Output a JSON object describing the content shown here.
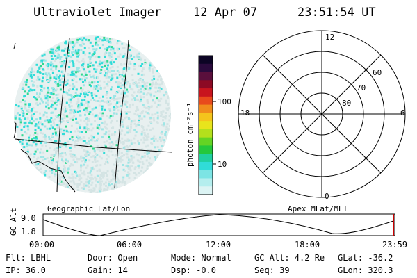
{
  "header": {
    "instrument": "Ultraviolet Imager",
    "date": "12 Apr 07",
    "time": "23:51:54 UT"
  },
  "image_panel": {
    "caption": "Geographic Lat/Lon"
  },
  "colorbar": {
    "unit_label": "photon cm⁻²s⁻¹",
    "scale": "log",
    "ticks": [
      "100",
      "10"
    ],
    "colors": [
      "#0c0424",
      "#2a0a3c",
      "#5a0f3c",
      "#8c0a24",
      "#c8141e",
      "#e84a1c",
      "#f08c1c",
      "#f4c41c",
      "#e8e41c",
      "#b4e01c",
      "#64d424",
      "#24c83c",
      "#20d0a0",
      "#30dcd8",
      "#7ce4e4",
      "#b4eeee",
      "#dcf4f4"
    ]
  },
  "polar_plot": {
    "caption": "Apex MLat/MLT",
    "mlt_labels": [
      "12",
      "18",
      "6",
      "0"
    ],
    "mlat_labels": [
      "60",
      "70",
      "80"
    ]
  },
  "altitude_strip": {
    "axis_label": "GC Alt",
    "y_ticks": [
      "9.0",
      "1.8"
    ],
    "x_ticks": [
      "00:00",
      "06:00",
      "12:00",
      "18:00",
      "23:59"
    ],
    "marker_color": "#cc0000"
  },
  "status": {
    "filter": "Flt: LBHL",
    "door": "Door: Open",
    "mode": "Mode: Normal",
    "gc_alt": "GC Alt: 4.2 Re",
    "glat": "GLat: -36.2",
    "ip": "IP: 36.0",
    "gain": "Gain: 14",
    "dsp": "Dsp:   -0.0",
    "seq": "Seq: 39",
    "glon": "GLon: 320.3"
  }
}
